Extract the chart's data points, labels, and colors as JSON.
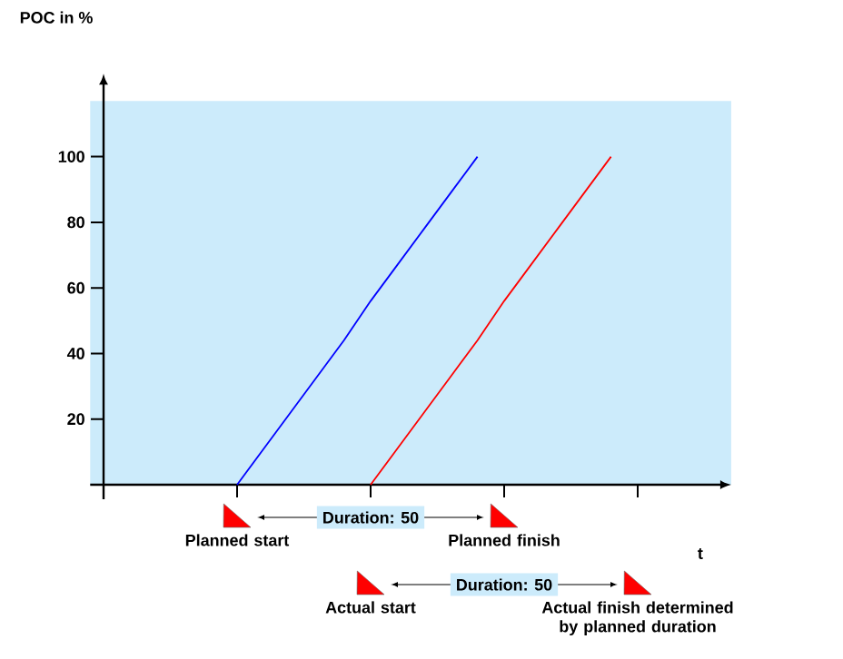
{
  "chart_data": {
    "type": "line",
    "ylabel": "POC in %",
    "xlabel": "t",
    "ylim": [
      0,
      117
    ],
    "yticks": [
      20,
      40,
      60,
      80,
      100
    ],
    "tick_labels": "y",
    "categories": [
      null,
      null,
      null,
      null,
      null,
      null,
      null,
      null,
      null,
      null,
      null,
      null,
      null,
      null,
      null,
      null,
      null,
      null,
      null,
      null,
      null,
      null,
      null,
      null
    ],
    "series": [
      {
        "color": "#0000ff",
        "values": [
          null,
          null,
          null,
          null,
          null,
          0,
          11,
          22,
          33,
          44,
          56,
          67,
          78,
          89,
          100,
          null,
          null,
          null,
          null,
          null,
          null,
          null,
          null,
          null
        ]
      },
      {
        "color": "#ff0000",
        "values": [
          null,
          null,
          null,
          null,
          null,
          null,
          null,
          null,
          null,
          null,
          0,
          11,
          22,
          33,
          44,
          56,
          67,
          78,
          89,
          100,
          null,
          null,
          null,
          null
        ]
      }
    ],
    "annotations": [
      "Planned start",
      "Duration: 50",
      "Planned finish",
      "Actual start",
      "Duration: 50",
      "Actual finish determined by planned duration"
    ]
  }
}
